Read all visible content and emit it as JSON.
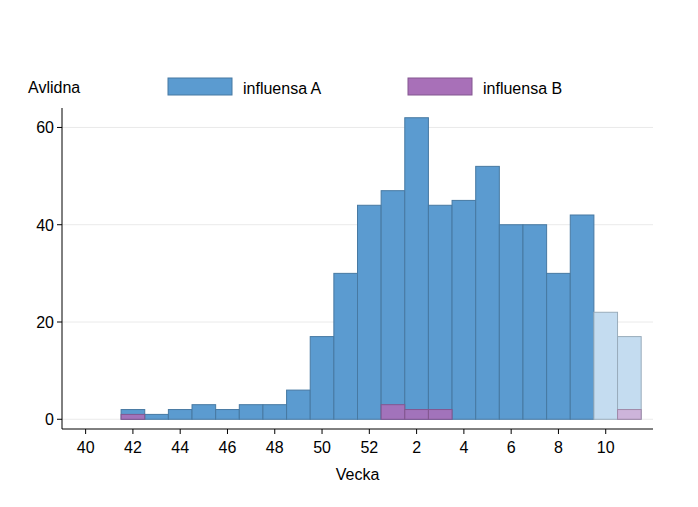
{
  "chart_data": {
    "type": "bar",
    "y_label": "Avlidna",
    "x_label": "Vecka",
    "categories": [
      40,
      null,
      42,
      null,
      44,
      null,
      46,
      null,
      48,
      null,
      50,
      null,
      52,
      null,
      2,
      null,
      4,
      null,
      6,
      null,
      8,
      null,
      10,
      null
    ],
    "series": [
      {
        "name": "influensa A",
        "color": "#5b9bd0",
        "colors": [
          "#5b9bd0",
          "#5b9bd0",
          "#5b9bd0",
          "#5b9bd0",
          "#5b9bd0",
          "#5b9bd0",
          "#5b9bd0",
          "#5b9bd0",
          "#5b9bd0",
          "#5b9bd0",
          "#5b9bd0",
          "#5b9bd0",
          "#5b9bd0",
          "#5b9bd0",
          "#5b9bd0",
          "#5b9bd0",
          "#5b9bd0",
          "#5b9bd0",
          "#5b9bd0",
          "#5b9bd0",
          "#5b9bd0",
          "#5b9bd0",
          "#c4dcf0",
          "#c4dcf0"
        ],
        "values": [
          0,
          0,
          2,
          1,
          2,
          3,
          2,
          3,
          3,
          6,
          17,
          30,
          44,
          47,
          62,
          44,
          45,
          52,
          40,
          40,
          30,
          42,
          22,
          17
        ]
      },
      {
        "name": "influensa B",
        "color": "#a870b8",
        "colors": [
          "#a870b8",
          "#a870b8",
          "#a870b8",
          "#a870b8",
          "#a870b8",
          "#a870b8",
          "#a870b8",
          "#a870b8",
          "#a870b8",
          "#a870b8",
          "#a870b8",
          "#a870b8",
          "#a870b8",
          "#a870b8",
          "#a870b8",
          "#a870b8",
          "#a870b8",
          "#a870b8",
          "#a870b8",
          "#a870b8",
          "#a870b8",
          "#a870b8",
          "#a870b8",
          "#cdb0d8"
        ],
        "values": [
          0,
          0,
          1,
          0,
          0,
          0,
          0,
          0,
          0,
          0,
          0,
          0,
          0,
          3,
          2,
          2,
          0,
          0,
          0,
          0,
          0,
          0,
          0,
          2
        ]
      }
    ],
    "ylim": [
      -2,
      64
    ],
    "yticks": [
      0,
      20,
      40,
      60
    ],
    "grid": true,
    "legend": "top",
    "stacked": false
  }
}
